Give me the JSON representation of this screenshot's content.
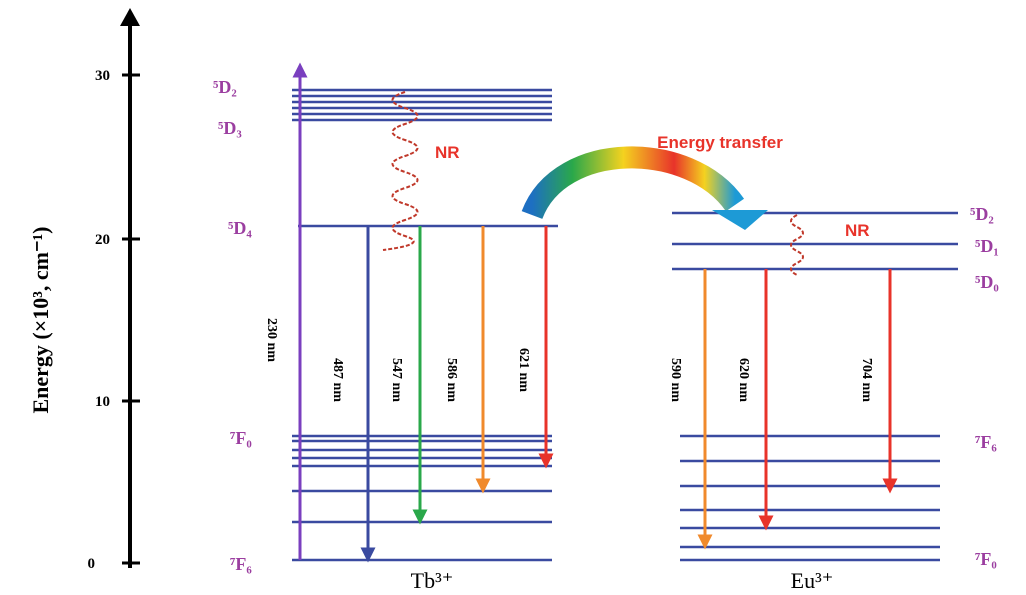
{
  "axis": {
    "label": "Energy (×10³, cm⁻¹)",
    "ticks": [
      "0",
      "10",
      "20",
      "30"
    ]
  },
  "tb": {
    "ion": "Tb³⁺",
    "levels": [
      "⁵D₂",
      "⁵D₃",
      "⁵D₄",
      "⁷F₀",
      "⁷F₆"
    ],
    "transitions": [
      "230 nm",
      "487 nm",
      "547 nm",
      "586 nm",
      "621 nm"
    ],
    "nr": "NR"
  },
  "eu": {
    "ion": "Eu³⁺",
    "levels": [
      "⁵D₂",
      "⁵D₁",
      "⁵D₀",
      "⁷F₆",
      "⁷F₀"
    ],
    "transitions": [
      "590 nm",
      "620 nm",
      "704 nm"
    ],
    "nr": "NR"
  },
  "transfer": "Energy transfer"
}
